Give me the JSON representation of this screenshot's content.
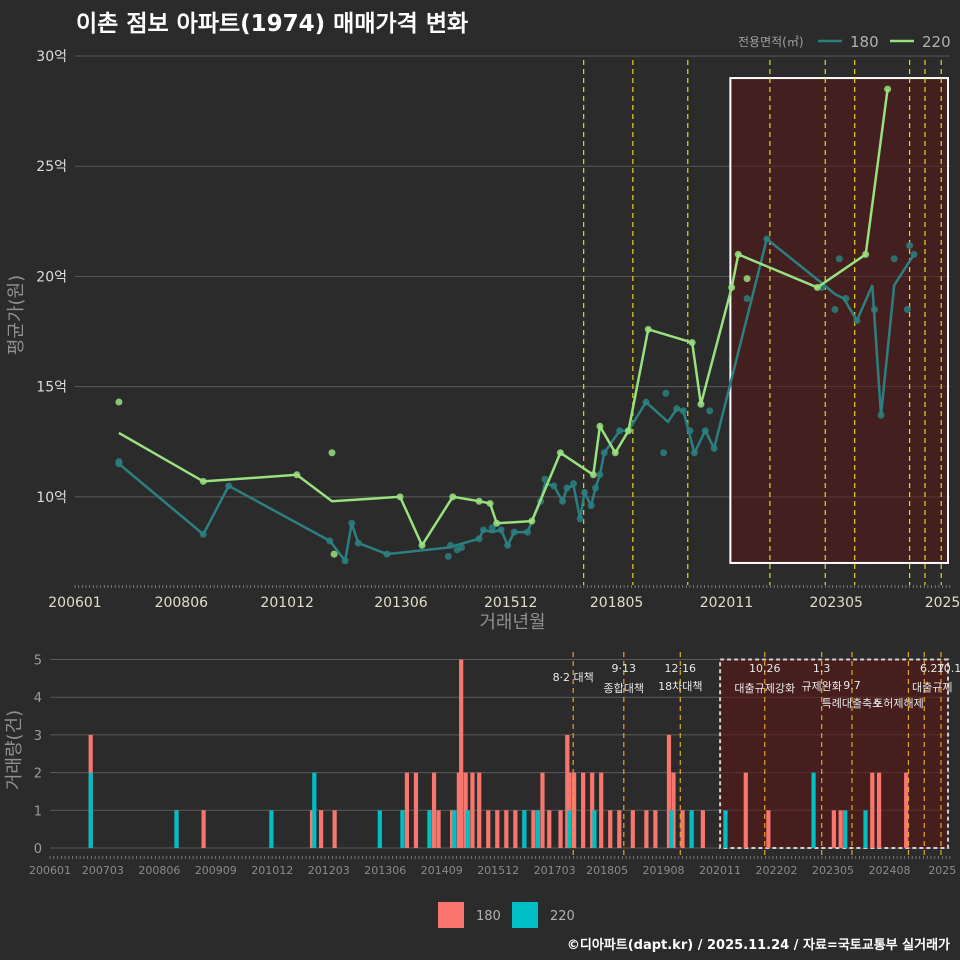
{
  "title": "이촌 점보 아파트(1974) 매매가격 변화",
  "footer": "©디아파트(dapt.kr) / 2025.11.24 / 자료=국토교통부 실거래가",
  "chart_data": [
    {
      "type": "line",
      "title": "이촌 점보 아파트(1974) 매매가격 변화",
      "xlabel": "거래년월",
      "ylabel": "평균가(원)",
      "x_range": [
        2006.0,
        2025.92
      ],
      "ylim": [
        6.0,
        30.5
      ],
      "y_ticks": [
        10,
        15,
        20,
        25,
        30
      ],
      "y_tick_labels": [
        "10억",
        "15억",
        "20억",
        "25억",
        "30억"
      ],
      "x_ticks": [
        2006.0,
        2008.42,
        2010.83,
        2013.42,
        2015.92,
        2018.33,
        2020.83,
        2023.33,
        2025.75
      ],
      "x_tick_labels": [
        "200601",
        "200806",
        "201012",
        "201306",
        "201512",
        "201805",
        "202011",
        "202305",
        "2025"
      ],
      "legend_title": "전용면적(㎡)",
      "legend_position": "top-right",
      "series": [
        {
          "name": "180",
          "color": "#2c7f80",
          "line": [
            [
              2007.0,
              11.5
            ],
            [
              2008.92,
              8.3
            ],
            [
              2009.5,
              10.5
            ],
            [
              2011.8,
              8.0
            ],
            [
              2012.15,
              7.1
            ],
            [
              2012.3,
              8.8
            ],
            [
              2012.45,
              7.9
            ],
            [
              2013.1,
              7.4
            ],
            [
              2014.5,
              7.7
            ],
            [
              2015.2,
              8.1
            ],
            [
              2015.3,
              8.5
            ],
            [
              2015.5,
              8.4
            ],
            [
              2015.7,
              8.5
            ],
            [
              2015.85,
              7.8
            ],
            [
              2016.0,
              8.4
            ],
            [
              2016.3,
              8.4
            ],
            [
              2016.6,
              9.8
            ],
            [
              2016.7,
              10.6
            ],
            [
              2016.9,
              10.5
            ],
            [
              2017.1,
              9.8
            ],
            [
              2017.2,
              10.4
            ],
            [
              2017.35,
              10.5
            ],
            [
              2017.5,
              9.0
            ],
            [
              2017.6,
              10.2
            ],
            [
              2017.75,
              9.6
            ],
            [
              2017.85,
              10.4
            ],
            [
              2017.95,
              11.0
            ],
            [
              2018.05,
              12.0
            ],
            [
              2018.4,
              13.0
            ],
            [
              2018.6,
              13.0
            ],
            [
              2019.0,
              14.3
            ],
            [
              2019.5,
              13.4
            ],
            [
              2019.7,
              14.0
            ],
            [
              2019.85,
              13.9
            ],
            [
              2020.1,
              12.0
            ],
            [
              2020.35,
              13.0
            ],
            [
              2020.55,
              12.2
            ],
            [
              2021.75,
              21.7
            ],
            [
              2023.0,
              19.7
            ],
            [
              2023.3,
              19.2
            ],
            [
              2023.5,
              19.0
            ],
            [
              2023.8,
              18.0
            ],
            [
              2024.15,
              19.6
            ],
            [
              2024.35,
              13.7
            ],
            [
              2024.65,
              19.6
            ],
            [
              2025.1,
              21.0
            ]
          ],
          "points": [
            [
              2007.0,
              11.6
            ],
            [
              2007.0,
              11.5
            ],
            [
              2008.92,
              8.3
            ],
            [
              2009.5,
              10.5
            ],
            [
              2011.8,
              8.0
            ],
            [
              2012.15,
              7.1
            ],
            [
              2012.3,
              8.8
            ],
            [
              2012.45,
              7.9
            ],
            [
              2013.1,
              7.4
            ],
            [
              2014.5,
              7.3
            ],
            [
              2014.55,
              7.8
            ],
            [
              2014.7,
              7.6
            ],
            [
              2014.8,
              7.7
            ],
            [
              2015.2,
              8.1
            ],
            [
              2015.3,
              8.5
            ],
            [
              2015.5,
              8.6
            ],
            [
              2015.7,
              8.5
            ],
            [
              2015.85,
              7.8
            ],
            [
              2016.0,
              8.4
            ],
            [
              2016.3,
              8.4
            ],
            [
              2016.6,
              9.8
            ],
            [
              2016.7,
              10.8
            ],
            [
              2016.9,
              10.5
            ],
            [
              2017.1,
              9.8
            ],
            [
              2017.2,
              10.4
            ],
            [
              2017.35,
              10.6
            ],
            [
              2017.5,
              9.0
            ],
            [
              2017.6,
              10.2
            ],
            [
              2017.75,
              9.6
            ],
            [
              2017.85,
              10.4
            ],
            [
              2017.95,
              11.0
            ],
            [
              2018.05,
              12.0
            ],
            [
              2018.4,
              13.0
            ],
            [
              2018.6,
              13.0
            ],
            [
              2019.0,
              14.3
            ],
            [
              2019.4,
              12.0
            ],
            [
              2019.45,
              14.7
            ],
            [
              2019.7,
              14.0
            ],
            [
              2019.85,
              13.9
            ],
            [
              2020.0,
              13.0
            ],
            [
              2020.1,
              12.0
            ],
            [
              2020.35,
              13.0
            ],
            [
              2020.45,
              13.9
            ],
            [
              2020.55,
              12.2
            ],
            [
              2021.3,
              19.0
            ],
            [
              2021.75,
              21.7
            ],
            [
              2023.0,
              19.5
            ],
            [
              2023.3,
              18.5
            ],
            [
              2023.4,
              20.8
            ],
            [
              2023.55,
              19.0
            ],
            [
              2023.8,
              18.0
            ],
            [
              2024.2,
              18.5
            ],
            [
              2024.35,
              13.7
            ],
            [
              2024.65,
              20.8
            ],
            [
              2024.95,
              18.5
            ],
            [
              2025.0,
              21.4
            ],
            [
              2025.1,
              21.0
            ]
          ]
        },
        {
          "name": "220",
          "color": "#99e17f",
          "line": [
            [
              2007.0,
              12.9
            ],
            [
              2008.92,
              10.7
            ],
            [
              2011.05,
              11.0
            ],
            [
              2011.85,
              9.8
            ],
            [
              2013.4,
              10.0
            ],
            [
              2013.9,
              7.8
            ],
            [
              2014.6,
              10.0
            ],
            [
              2015.2,
              9.8
            ],
            [
              2015.45,
              9.7
            ],
            [
              2015.6,
              8.8
            ],
            [
              2016.4,
              8.9
            ],
            [
              2017.05,
              12.0
            ],
            [
              2017.8,
              11.0
            ],
            [
              2017.95,
              13.2
            ],
            [
              2018.3,
              12.0
            ],
            [
              2018.6,
              13.0
            ],
            [
              2019.05,
              17.6
            ],
            [
              2020.05,
              17.0
            ],
            [
              2020.25,
              14.2
            ],
            [
              2020.95,
              19.5
            ],
            [
              2021.1,
              21.0
            ],
            [
              2022.9,
              19.5
            ],
            [
              2024.0,
              21.0
            ],
            [
              2024.5,
              28.5
            ]
          ],
          "points": [
            [
              2007.0,
              14.3
            ],
            [
              2008.92,
              10.7
            ],
            [
              2011.05,
              11.0
            ],
            [
              2011.85,
              12.0
            ],
            [
              2011.9,
              7.4
            ],
            [
              2013.4,
              10.0
            ],
            [
              2013.9,
              7.8
            ],
            [
              2014.6,
              10.0
            ],
            [
              2015.2,
              9.8
            ],
            [
              2015.45,
              9.7
            ],
            [
              2015.6,
              8.8
            ],
            [
              2016.4,
              8.9
            ],
            [
              2017.05,
              12.0
            ],
            [
              2017.8,
              11.0
            ],
            [
              2017.95,
              13.2
            ],
            [
              2018.3,
              12.0
            ],
            [
              2018.6,
              13.0
            ],
            [
              2019.05,
              17.6
            ],
            [
              2020.05,
              17.0
            ],
            [
              2020.25,
              14.2
            ],
            [
              2020.95,
              19.5
            ],
            [
              2021.1,
              21.0
            ],
            [
              2021.3,
              19.9
            ],
            [
              2022.9,
              19.5
            ],
            [
              2024.0,
              21.0
            ],
            [
              2024.5,
              28.5
            ]
          ]
        }
      ],
      "policy_lines": [
        2017.58,
        2018.7,
        2019.95,
        2021.82,
        2023.08,
        2023.75,
        2025.0,
        2025.35,
        2025.72
      ],
      "highlight_x": [
        2020.92,
        2025.92
      ],
      "highlight_y": [
        7.0,
        29.0
      ]
    },
    {
      "type": "bar",
      "ylabel": "거래량(건)",
      "x_range": [
        2006.0,
        2025.92
      ],
      "ylim": [
        0,
        5.2
      ],
      "y_ticks": [
        0,
        1,
        2,
        3,
        4,
        5
      ],
      "x_ticks": [
        2006.0,
        2007.17,
        2008.42,
        2009.67,
        2010.92,
        2012.17,
        2013.42,
        2014.67,
        2015.92,
        2017.17,
        2018.33,
        2019.58,
        2020.83,
        2022.08,
        2023.33,
        2024.58,
        2025.75
      ],
      "x_tick_labels": [
        "200601",
        "200703",
        "200806",
        "200909",
        "201012",
        "201203",
        "201306",
        "201409",
        "201512",
        "201703",
        "201805",
        "201908",
        "202011",
        "202202",
        "202305",
        "202408",
        "2025"
      ],
      "legend_position": "bottom",
      "series": [
        {
          "name": "180",
          "color": "#f8766d",
          "bars": [
            [
              2006.9,
              3
            ],
            [
              2008.8,
              1
            ],
            [
              2009.4,
              1
            ],
            [
              2011.8,
              1
            ],
            [
              2012.0,
              1
            ],
            [
              2012.3,
              1
            ],
            [
              2013.9,
              2
            ],
            [
              2014.1,
              2
            ],
            [
              2014.4,
              1
            ],
            [
              2014.5,
              2
            ],
            [
              2014.6,
              1
            ],
            [
              2014.9,
              1
            ],
            [
              2015.05,
              2
            ],
            [
              2015.1,
              5
            ],
            [
              2015.2,
              2
            ],
            [
              2015.35,
              2
            ],
            [
              2015.5,
              2
            ],
            [
              2015.7,
              1
            ],
            [
              2015.9,
              1
            ],
            [
              2016.1,
              1
            ],
            [
              2016.3,
              1
            ],
            [
              2016.5,
              1
            ],
            [
              2016.7,
              1
            ],
            [
              2016.9,
              2
            ],
            [
              2017.05,
              1
            ],
            [
              2017.3,
              1
            ],
            [
              2017.45,
              3
            ],
            [
              2017.5,
              2
            ],
            [
              2017.6,
              2
            ],
            [
              2017.8,
              2
            ],
            [
              2018.0,
              2
            ],
            [
              2018.2,
              2
            ],
            [
              2018.4,
              1
            ],
            [
              2018.6,
              1
            ],
            [
              2018.9,
              1
            ],
            [
              2019.2,
              1
            ],
            [
              2019.4,
              1
            ],
            [
              2019.7,
              3
            ],
            [
              2019.8,
              2
            ],
            [
              2020.0,
              1
            ],
            [
              2020.2,
              1
            ],
            [
              2020.45,
              1
            ],
            [
              2021.4,
              2
            ],
            [
              2021.9,
              1
            ],
            [
              2023.35,
              1
            ],
            [
              2023.5,
              1
            ],
            [
              2024.2,
              2
            ],
            [
              2024.35,
              2
            ],
            [
              2024.95,
              2
            ]
          ]
        },
        {
          "name": "220",
          "color": "#00bfc4",
          "bars": [
            [
              2006.9,
              2
            ],
            [
              2008.8,
              1
            ],
            [
              2010.9,
              1
            ],
            [
              2011.85,
              2
            ],
            [
              2013.3,
              1
            ],
            [
              2013.8,
              1
            ],
            [
              2014.4,
              1
            ],
            [
              2014.95,
              1
            ],
            [
              2015.25,
              1
            ],
            [
              2016.5,
              1
            ],
            [
              2016.8,
              1
            ],
            [
              2017.5,
              1
            ],
            [
              2018.05,
              1
            ],
            [
              2019.75,
              1
            ],
            [
              2020.2,
              1
            ],
            [
              2020.95,
              1
            ],
            [
              2022.9,
              2
            ],
            [
              2023.6,
              1
            ],
            [
              2024.05,
              1
            ]
          ]
        }
      ],
      "policy_labels": [
        {
          "x": 2017.58,
          "date": "",
          "text": "8·2 대책"
        },
        {
          "x": 2018.7,
          "date": "9·13",
          "text": "종합대책"
        },
        {
          "x": 2019.95,
          "date": "12·16",
          "text": "18차대책"
        },
        {
          "x": 2021.82,
          "date": "10.26",
          "text": "대출규제강화"
        },
        {
          "x": 2023.08,
          "date": "1.3",
          "text": "규제완화"
        },
        {
          "x": 2023.75,
          "date": "9.7",
          "text": "특례대출축소"
        },
        {
          "x": 2025.0,
          "date": "",
          "text": "토허제해제"
        },
        {
          "x": 2025.35,
          "date": "6.27",
          "text": "대출규제"
        },
        {
          "x": 2025.72,
          "date": "10.1",
          "text": ""
        }
      ]
    }
  ]
}
